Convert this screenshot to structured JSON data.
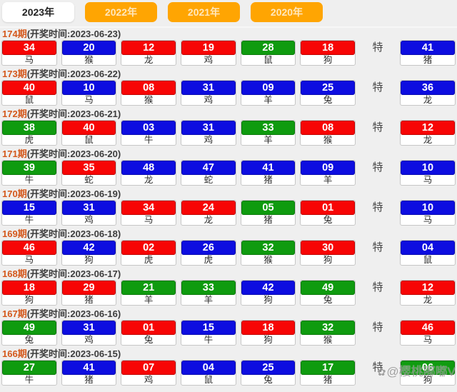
{
  "tabs": [
    {
      "label": "2023年",
      "active": true
    },
    {
      "label": "2022年",
      "active": false
    },
    {
      "label": "2021年",
      "active": false
    },
    {
      "label": "2020年",
      "active": false
    }
  ],
  "te_label": "特",
  "time_prefix_note": "开奖时间",
  "colors": {
    "red": "#f70505",
    "blue": "#0d0de0",
    "green": "#0f9b0f",
    "tab_orange": "#ffa502",
    "issue_orange": "#d4581c"
  },
  "watermark": {
    "icon": "✿",
    "text": "@樱桃嘟嘟V"
  },
  "draws": [
    {
      "issue": "174期",
      "time": "(开奖时间:2023-06-23)",
      "balls": [
        {
          "n": "34",
          "c": "red",
          "z": "马"
        },
        {
          "n": "20",
          "c": "blue",
          "z": "猴"
        },
        {
          "n": "12",
          "c": "red",
          "z": "龙"
        },
        {
          "n": "19",
          "c": "red",
          "z": "鸡"
        },
        {
          "n": "28",
          "c": "green",
          "z": "鼠"
        },
        {
          "n": "18",
          "c": "red",
          "z": "狗"
        }
      ],
      "special": {
        "n": "41",
        "c": "blue",
        "z": "猪"
      }
    },
    {
      "issue": "173期",
      "time": "(开奖时间:2023-06-22)",
      "balls": [
        {
          "n": "40",
          "c": "red",
          "z": "鼠"
        },
        {
          "n": "10",
          "c": "blue",
          "z": "马"
        },
        {
          "n": "08",
          "c": "red",
          "z": "猴"
        },
        {
          "n": "31",
          "c": "blue",
          "z": "鸡"
        },
        {
          "n": "09",
          "c": "blue",
          "z": "羊"
        },
        {
          "n": "25",
          "c": "blue",
          "z": "兔"
        }
      ],
      "special": {
        "n": "36",
        "c": "blue",
        "z": "龙"
      }
    },
    {
      "issue": "172期",
      "time": "(开奖时间:2023-06-21)",
      "balls": [
        {
          "n": "38",
          "c": "green",
          "z": "虎"
        },
        {
          "n": "40",
          "c": "red",
          "z": "鼠"
        },
        {
          "n": "03",
          "c": "blue",
          "z": "牛"
        },
        {
          "n": "31",
          "c": "blue",
          "z": "鸡"
        },
        {
          "n": "33",
          "c": "green",
          "z": "羊"
        },
        {
          "n": "08",
          "c": "red",
          "z": "猴"
        }
      ],
      "special": {
        "n": "12",
        "c": "red",
        "z": "龙"
      }
    },
    {
      "issue": "171期",
      "time": "(开奖时间:2023-06-20)",
      "balls": [
        {
          "n": "39",
          "c": "green",
          "z": "牛"
        },
        {
          "n": "35",
          "c": "red",
          "z": "蛇"
        },
        {
          "n": "48",
          "c": "blue",
          "z": "龙"
        },
        {
          "n": "47",
          "c": "blue",
          "z": "蛇"
        },
        {
          "n": "41",
          "c": "blue",
          "z": "猪"
        },
        {
          "n": "09",
          "c": "blue",
          "z": "羊"
        }
      ],
      "special": {
        "n": "10",
        "c": "blue",
        "z": "马"
      }
    },
    {
      "issue": "170期",
      "time": "(开奖时间:2023-06-19)",
      "balls": [
        {
          "n": "15",
          "c": "blue",
          "z": "牛"
        },
        {
          "n": "31",
          "c": "blue",
          "z": "鸡"
        },
        {
          "n": "34",
          "c": "red",
          "z": "马"
        },
        {
          "n": "24",
          "c": "red",
          "z": "龙"
        },
        {
          "n": "05",
          "c": "green",
          "z": "猪"
        },
        {
          "n": "01",
          "c": "red",
          "z": "兔"
        }
      ],
      "special": {
        "n": "10",
        "c": "blue",
        "z": "马"
      }
    },
    {
      "issue": "169期",
      "time": "(开奖时间:2023-06-18)",
      "balls": [
        {
          "n": "46",
          "c": "red",
          "z": "马"
        },
        {
          "n": "42",
          "c": "blue",
          "z": "狗"
        },
        {
          "n": "02",
          "c": "red",
          "z": "虎"
        },
        {
          "n": "26",
          "c": "blue",
          "z": "虎"
        },
        {
          "n": "32",
          "c": "green",
          "z": "猴"
        },
        {
          "n": "30",
          "c": "red",
          "z": "狗"
        }
      ],
      "special": {
        "n": "04",
        "c": "blue",
        "z": "鼠"
      }
    },
    {
      "issue": "168期",
      "time": "(开奖时间:2023-06-17)",
      "balls": [
        {
          "n": "18",
          "c": "red",
          "z": "狗"
        },
        {
          "n": "29",
          "c": "red",
          "z": "猪"
        },
        {
          "n": "21",
          "c": "green",
          "z": "羊"
        },
        {
          "n": "33",
          "c": "green",
          "z": "羊"
        },
        {
          "n": "42",
          "c": "blue",
          "z": "狗"
        },
        {
          "n": "49",
          "c": "green",
          "z": "兔"
        }
      ],
      "special": {
        "n": "12",
        "c": "red",
        "z": "龙"
      }
    },
    {
      "issue": "167期",
      "time": "(开奖时间:2023-06-16)",
      "balls": [
        {
          "n": "49",
          "c": "green",
          "z": "兔"
        },
        {
          "n": "31",
          "c": "blue",
          "z": "鸡"
        },
        {
          "n": "01",
          "c": "red",
          "z": "兔"
        },
        {
          "n": "15",
          "c": "blue",
          "z": "牛"
        },
        {
          "n": "18",
          "c": "red",
          "z": "狗"
        },
        {
          "n": "32",
          "c": "green",
          "z": "猴"
        }
      ],
      "special": {
        "n": "46",
        "c": "red",
        "z": "马"
      }
    },
    {
      "issue": "166期",
      "time": "(开奖时间:2023-06-15)",
      "balls": [
        {
          "n": "27",
          "c": "green",
          "z": "牛"
        },
        {
          "n": "41",
          "c": "blue",
          "z": "猪"
        },
        {
          "n": "07",
          "c": "red",
          "z": "鸡"
        },
        {
          "n": "04",
          "c": "blue",
          "z": "鼠"
        },
        {
          "n": "25",
          "c": "blue",
          "z": "兔"
        },
        {
          "n": "17",
          "c": "green",
          "z": "猪"
        }
      ],
      "special": {
        "n": "06",
        "c": "green",
        "z": "狗"
      }
    }
  ]
}
